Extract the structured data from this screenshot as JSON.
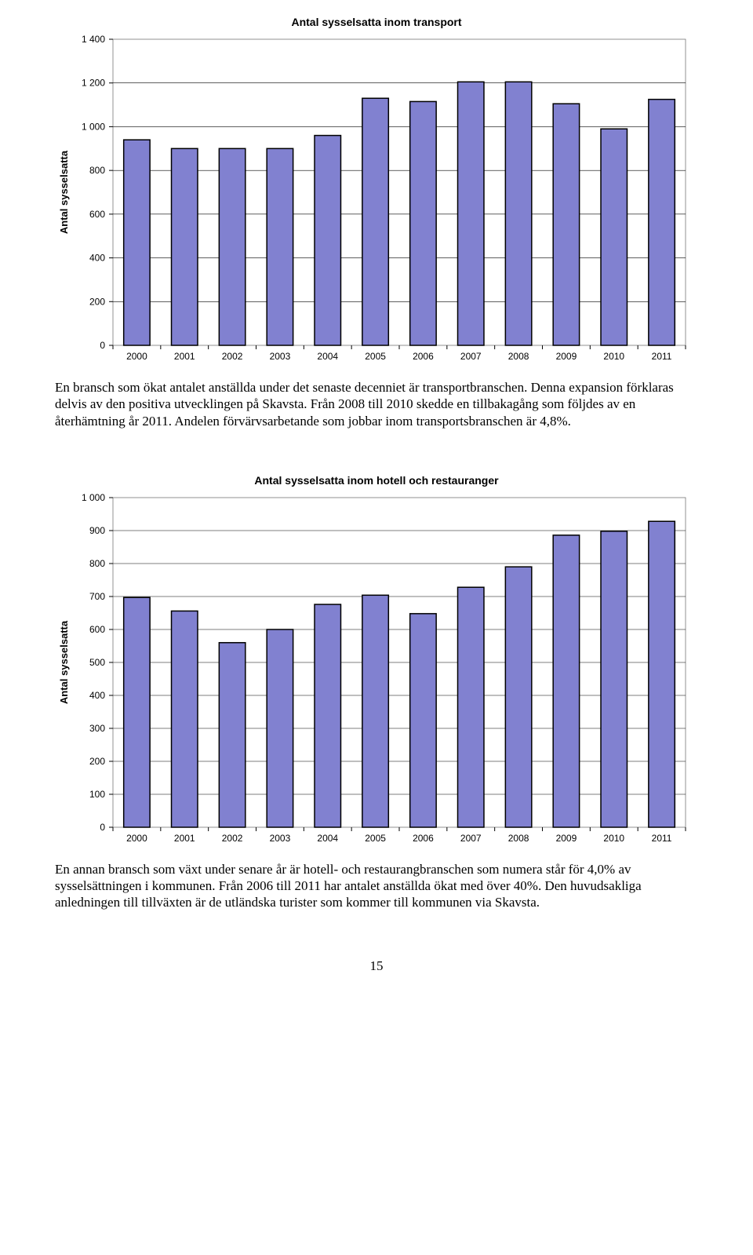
{
  "chart1": {
    "title": "Antal sysselsatta inom transport",
    "y_label": "Antal sysselsatta",
    "categories": [
      "2000",
      "2001",
      "2002",
      "2003",
      "2004",
      "2005",
      "2006",
      "2007",
      "2008",
      "2009",
      "2010",
      "2011"
    ],
    "values": [
      940,
      900,
      900,
      900,
      960,
      1130,
      1115,
      1205,
      1205,
      1105,
      990,
      1125
    ],
    "ylim": [
      0,
      1400
    ],
    "ytick_step": 200,
    "bar_fill": "#8181d0",
    "bar_stroke": "#000000",
    "bar_stroke_width": 1.5,
    "background": "#ffffff",
    "gridline_color": "#000000",
    "gridline_width": 0.6,
    "plot_border_color": "#757575",
    "bar_width_ratio": 0.55,
    "tick_fontsize": 12
  },
  "paragraph1": "En bransch som ökat antalet anställda under det senaste decenniet är transportbranschen. Denna expansion förklaras delvis av den positiva utvecklingen på Skavsta. Från 2008 till 2010 skedde en tillbakagång som följdes av en återhämtning år 2011. Andelen förvärvsarbetande som jobbar inom transportsbranschen är 4,8%.",
  "chart2": {
    "title": "Antal sysselsatta inom hotell och restauranger",
    "y_label": "Antal sysselsatta",
    "categories": [
      "2000",
      "2001",
      "2002",
      "2003",
      "2004",
      "2005",
      "2006",
      "2007",
      "2008",
      "2009",
      "2010",
      "2011"
    ],
    "values": [
      697,
      656,
      560,
      600,
      676,
      704,
      648,
      728,
      790,
      886,
      898,
      928
    ],
    "ylim": [
      0,
      1000
    ],
    "ytick_step": 100,
    "bar_fill": "#8181d0",
    "bar_stroke": "#000000",
    "bar_stroke_width": 1.5,
    "background": "#ffffff",
    "gridline_color": "#000000",
    "gridline_width": 0.6,
    "plot_border_color": "#757575",
    "bar_width_ratio": 0.55,
    "tick_fontsize": 12
  },
  "paragraph2": "En annan bransch som växt under senare år är hotell- och restaurangbranschen som numera står för 4,0% av sysselsättningen i kommunen. Från 2006 till 2011 har antalet anställda ökat med över 40%. Den huvudsakliga anledningen till tillväxten är de utländska turister som kommer till kommunen via Skavsta.",
  "page_number": "15"
}
